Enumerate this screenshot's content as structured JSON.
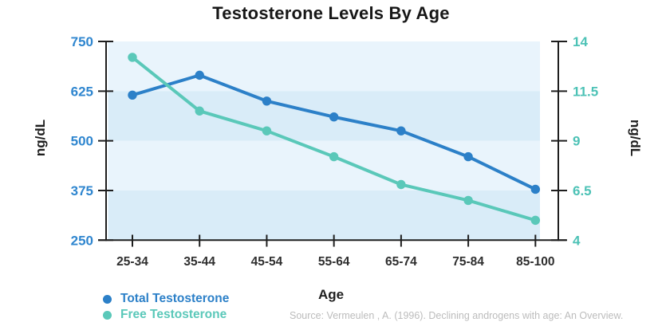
{
  "colors": {
    "background": "#ffffff",
    "band_light": "#e9f4fc",
    "band_dark": "#d9ecf8",
    "axis": "#1e1e1e",
    "left_tick_text": "#2f86cf",
    "right_tick_text": "#4dc2b6",
    "x_tick_text": "#2e2e2e",
    "title_text": "#171717",
    "source_text": "#bcbcbc"
  },
  "chart_data": {
    "type": "line",
    "title": "Testosterone Levels By Age",
    "xlabel": "Age",
    "categories": [
      "25-34",
      "35-44",
      "45-54",
      "55-64",
      "65-74",
      "75-84",
      "85-100"
    ],
    "left_axis": {
      "label": "ng/dL",
      "min": 250,
      "max": 750,
      "ticks": [
        750,
        625,
        500,
        375,
        250
      ]
    },
    "right_axis": {
      "label": "ng/dL",
      "min": 4,
      "max": 14,
      "ticks": [
        14,
        11.5,
        9,
        6.5,
        4
      ]
    },
    "series": [
      {
        "name": "Total Testosterone",
        "axis": "left",
        "color": "#2c80c8",
        "values": [
          615,
          665,
          600,
          560,
          525,
          460,
          378
        ]
      },
      {
        "name": "Free Testosterone",
        "axis": "right",
        "color": "#5ac8b9",
        "values": [
          13.2,
          10.5,
          9.5,
          8.2,
          6.8,
          6.0,
          5.0
        ]
      }
    ],
    "legend_position": "bottom-left",
    "grid": "alternating horizontal bands",
    "source": "Source: Vermeulen , A. (1996). Declining androgens with age: An Overview."
  }
}
